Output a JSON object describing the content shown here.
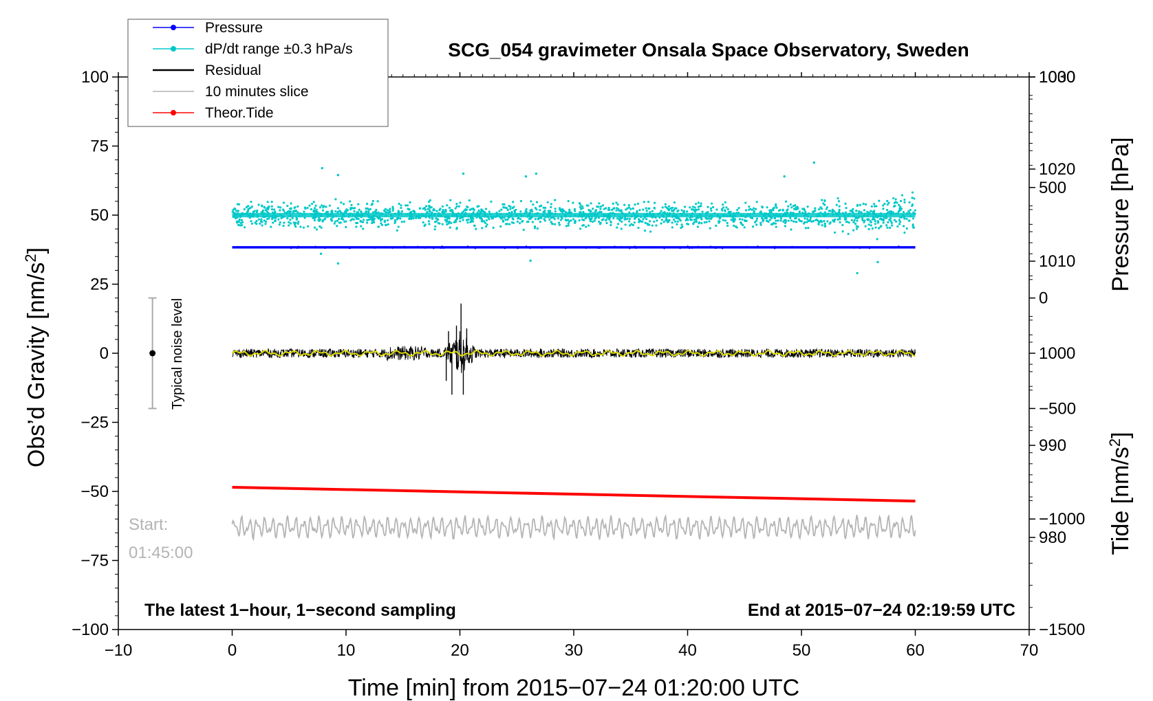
{
  "chart_data": {
    "type": "line",
    "title": "SCG_054 gravimeter Onsala Space Observatory, Sweden",
    "xlabel": "Time [min] from 2015−07−24 01:20:00 UTC",
    "xlim": [
      -10,
      70
    ],
    "xticks": [
      -10,
      0,
      10,
      20,
      30,
      40,
      50,
      60,
      70
    ],
    "xtick_labels": [
      "−10",
      "0",
      "10",
      "20",
      "30",
      "40",
      "50",
      "60",
      "70"
    ],
    "left_axis": {
      "label": "Obs’d Gravity [nm/s",
      "label_sup": "2",
      "label_close": "]",
      "ylim": [
        -100,
        100
      ],
      "ticks": [
        100,
        75,
        50,
        25,
        0,
        -25,
        -50,
        -75,
        -100
      ],
      "tick_labels": [
        "100",
        "75",
        "50",
        "25",
        "0",
        "−25",
        "−50",
        "−75",
        "−100"
      ]
    },
    "pressure_axis": {
      "label": "Pressure [hPa]",
      "ylim": [
        970,
        1030
      ],
      "ticks": [
        1030,
        1020,
        1010,
        1000,
        990,
        980
      ],
      "tick_labels": [
        "1030",
        "1020",
        "1010",
        "1000",
        "990",
        "980"
      ]
    },
    "tide_axis": {
      "label": "Tide [nm/s",
      "label_sup": "2",
      "label_close": "]",
      "ylim": [
        -1500,
        1000
      ],
      "ticks": [
        1000,
        500,
        0,
        -500,
        -1000,
        -1500
      ],
      "tick_labels": [
        "1000",
        "500",
        "0",
        "−500",
        "−1000",
        "−1500"
      ]
    },
    "series": [
      {
        "name": "Pressure",
        "color": "#0000ff",
        "style": "dots",
        "axis": "pressure",
        "x_range": [
          0,
          60
        ],
        "value": 1011.5
      },
      {
        "name": "dP/dt range ±0.3 hPa/s",
        "color": "#00c8c8",
        "style": "scatter",
        "axis": "left",
        "x_range": [
          0,
          60
        ],
        "offset": 50,
        "spread": 3
      },
      {
        "name": "Residual",
        "color": "#000000",
        "style": "line",
        "axis": "left",
        "x_range": [
          0,
          60
        ],
        "offset": 0,
        "burst_center_min": 20,
        "burst_peak": 18
      },
      {
        "name": "10 minutes slice",
        "color": "#b4b4b4",
        "style": "line",
        "axis": "left",
        "x_range": [
          0,
          60
        ],
        "offset": -63
      },
      {
        "name": "Theor.Tide",
        "color": "#ff0000",
        "style": "line",
        "axis": "left",
        "x": [
          0,
          60
        ],
        "y": [
          -48.5,
          -53.5
        ]
      }
    ],
    "smoothed_residual_color": "#dcdc00",
    "noise_bar": {
      "label": "Typical noise level",
      "x": -7,
      "center": 0,
      "range": [
        -20,
        20
      ]
    },
    "annotations": {
      "bottom_left": "The latest 1−hour, 1−second sampling",
      "bottom_right": "End at 2015−07−24 02:19:59 UTC",
      "start_label": "Start:",
      "start_time": "01:45:00"
    }
  }
}
